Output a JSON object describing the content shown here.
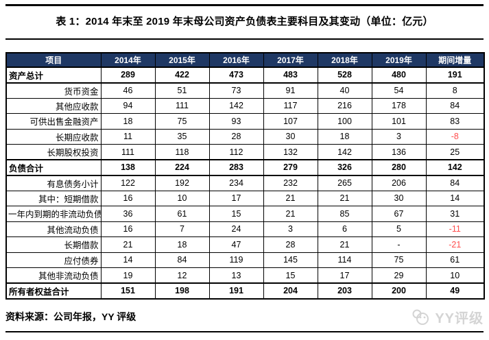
{
  "title": "表 1：2014 年末至 2019 年末母公司资产负债表主要科目及其变动（单位：亿元）",
  "table": {
    "columns": [
      "项目",
      "2014年",
      "2015年",
      "2016年",
      "2017年",
      "2018年",
      "2019年",
      "期间增量"
    ],
    "rows": [
      {
        "label": "资产总计",
        "bold": true,
        "values": [
          "289",
          "422",
          "473",
          "483",
          "528",
          "480",
          "191"
        ]
      },
      {
        "label": "货币资金",
        "bold": false,
        "values": [
          "46",
          "51",
          "73",
          "91",
          "40",
          "54",
          "8"
        ]
      },
      {
        "label": "其他应收款",
        "bold": false,
        "values": [
          "94",
          "111",
          "142",
          "117",
          "216",
          "178",
          "84"
        ]
      },
      {
        "label": "可供出售金融资产",
        "bold": false,
        "values": [
          "18",
          "75",
          "93",
          "107",
          "100",
          "101",
          "83"
        ]
      },
      {
        "label": "长期应收款",
        "bold": false,
        "values": [
          "11",
          "35",
          "28",
          "30",
          "18",
          "3",
          "-8"
        ]
      },
      {
        "label": "长期股权投资",
        "bold": false,
        "values": [
          "111",
          "118",
          "112",
          "132",
          "142",
          "136",
          "25"
        ]
      },
      {
        "label": "负债合计",
        "bold": true,
        "values": [
          "138",
          "224",
          "283",
          "279",
          "326",
          "280",
          "142"
        ]
      },
      {
        "label": "有息债务小计",
        "bold": false,
        "values": [
          "122",
          "192",
          "234",
          "232",
          "265",
          "206",
          "84"
        ]
      },
      {
        "label": "其中：短期借款",
        "bold": false,
        "values": [
          "16",
          "10",
          "17",
          "21",
          "21",
          "30",
          "14"
        ]
      },
      {
        "label": "一年内到期的非流动负债",
        "bold": false,
        "values": [
          "36",
          "61",
          "15",
          "21",
          "85",
          "67",
          "31"
        ]
      },
      {
        "label": "其他流动负债",
        "bold": false,
        "values": [
          "16",
          "7",
          "24",
          "3",
          "6",
          "5",
          "-11"
        ]
      },
      {
        "label": "长期借款",
        "bold": false,
        "values": [
          "21",
          "18",
          "47",
          "28",
          "21",
          "-",
          "-21"
        ]
      },
      {
        "label": "应付债券",
        "bold": false,
        "values": [
          "14",
          "84",
          "119",
          "145",
          "114",
          "75",
          "61"
        ]
      },
      {
        "label": "其他非流动负债",
        "bold": false,
        "values": [
          "19",
          "12",
          "13",
          "15",
          "17",
          "29",
          "10"
        ]
      },
      {
        "label": "所有者权益合计",
        "bold": true,
        "values": [
          "151",
          "198",
          "191",
          "204",
          "203",
          "200",
          "49"
        ]
      }
    ]
  },
  "footer": {
    "source": "资料来源：公司年报，YY 评级"
  },
  "watermark": {
    "label": "YY评级"
  },
  "colors": {
    "header_bg": "#1f3864",
    "header_text": "#ffffff",
    "negative": "#ff4d4d",
    "border": "#000000"
  }
}
